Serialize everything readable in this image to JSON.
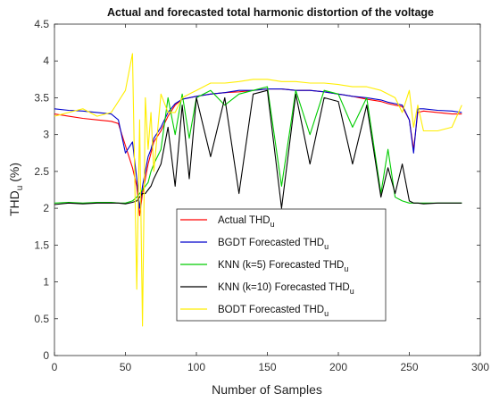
{
  "chart_data": {
    "type": "line",
    "title": "Actual and forecasted total harmonic distortion of the voltage",
    "xlabel": "Number of Samples",
    "ylabel": "THD",
    "ylabel_sub": "u",
    "ylabel_unit": "(%)",
    "xlim": [
      0,
      300
    ],
    "ylim": [
      0,
      4.5
    ],
    "xticks": [
      "0",
      "50",
      "100",
      "150",
      "200",
      "250",
      "300"
    ],
    "yticks": [
      "0",
      "0.5",
      "1",
      "1.5",
      "2",
      "2.5",
      "3",
      "3.5",
      "4",
      "4.5"
    ],
    "grid": false,
    "legend_position": "center-bottom",
    "x": [
      0,
      10,
      20,
      30,
      40,
      45,
      50,
      55,
      58,
      60,
      62,
      64,
      66,
      68,
      70,
      75,
      80,
      85,
      90,
      95,
      100,
      110,
      120,
      130,
      140,
      150,
      160,
      170,
      180,
      190,
      200,
      210,
      220,
      230,
      235,
      240,
      245,
      250,
      253,
      256,
      260,
      270,
      280,
      287
    ],
    "series": [
      {
        "name": "Actual THD",
        "name_sub": "u",
        "color": "#ff0000",
        "values": [
          3.28,
          3.25,
          3.22,
          3.2,
          3.18,
          3.15,
          2.85,
          2.55,
          2.3,
          1.9,
          2.2,
          2.4,
          2.6,
          2.75,
          2.9,
          3.05,
          3.25,
          3.4,
          3.48,
          3.5,
          3.52,
          3.55,
          3.57,
          3.58,
          3.6,
          3.62,
          3.62,
          3.6,
          3.6,
          3.58,
          3.55,
          3.52,
          3.48,
          3.45,
          3.42,
          3.4,
          3.38,
          3.2,
          2.8,
          3.3,
          3.32,
          3.3,
          3.28,
          3.28
        ]
      },
      {
        "name": "BGDT Forecasted THD",
        "name_sub": "u",
        "color": "#0000cc",
        "values": [
          3.35,
          3.33,
          3.32,
          3.3,
          3.28,
          3.2,
          2.75,
          2.9,
          2.4,
          2.0,
          2.3,
          2.5,
          2.7,
          2.8,
          2.95,
          3.1,
          3.3,
          3.42,
          3.48,
          3.5,
          3.52,
          3.55,
          3.57,
          3.6,
          3.6,
          3.62,
          3.62,
          3.6,
          3.6,
          3.58,
          3.55,
          3.52,
          3.5,
          3.47,
          3.44,
          3.42,
          3.4,
          3.2,
          2.75,
          3.35,
          3.35,
          3.33,
          3.32,
          3.3
        ]
      },
      {
        "name": "KNN (k=5) Forecasted THD",
        "name_sub": "u",
        "color": "#00cc00",
        "values": [
          2.07,
          2.08,
          2.07,
          2.08,
          2.08,
          2.07,
          2.07,
          2.1,
          2.15,
          2.2,
          2.25,
          2.3,
          2.35,
          2.5,
          2.6,
          2.8,
          3.5,
          3.0,
          3.55,
          2.95,
          3.5,
          3.6,
          3.4,
          3.55,
          3.6,
          3.65,
          2.3,
          3.6,
          3.0,
          3.6,
          3.55,
          3.1,
          3.5,
          2.2,
          2.8,
          2.15,
          2.1,
          2.07,
          2.07,
          2.07,
          2.07,
          2.07,
          2.07,
          2.07
        ]
      },
      {
        "name": "KNN (k=10) Forecasted THD",
        "name_sub": "u",
        "color": "#000000",
        "values": [
          2.05,
          2.07,
          2.06,
          2.07,
          2.07,
          2.07,
          2.06,
          2.08,
          2.1,
          2.15,
          2.2,
          2.2,
          2.25,
          2.3,
          2.4,
          2.6,
          3.1,
          2.3,
          3.4,
          2.4,
          3.5,
          2.7,
          3.5,
          2.2,
          3.55,
          3.6,
          2.0,
          3.55,
          2.6,
          3.5,
          3.45,
          2.6,
          3.4,
          2.15,
          2.55,
          2.2,
          2.6,
          2.1,
          2.07,
          2.07,
          2.06,
          2.07,
          2.07,
          2.07
        ]
      },
      {
        "name": "BODT Forecasted THD",
        "name_sub": "u",
        "color": "#ffee00",
        "values": [
          3.25,
          3.3,
          3.35,
          3.25,
          3.3,
          3.45,
          3.6,
          4.1,
          0.9,
          3.2,
          0.4,
          3.5,
          2.8,
          3.3,
          2.5,
          3.55,
          3.3,
          3.3,
          3.5,
          3.55,
          3.6,
          3.7,
          3.7,
          3.72,
          3.75,
          3.75,
          3.72,
          3.72,
          3.7,
          3.7,
          3.68,
          3.65,
          3.65,
          3.6,
          3.55,
          3.5,
          3.3,
          3.6,
          3.1,
          3.4,
          3.05,
          3.05,
          3.1,
          3.4
        ]
      }
    ]
  }
}
